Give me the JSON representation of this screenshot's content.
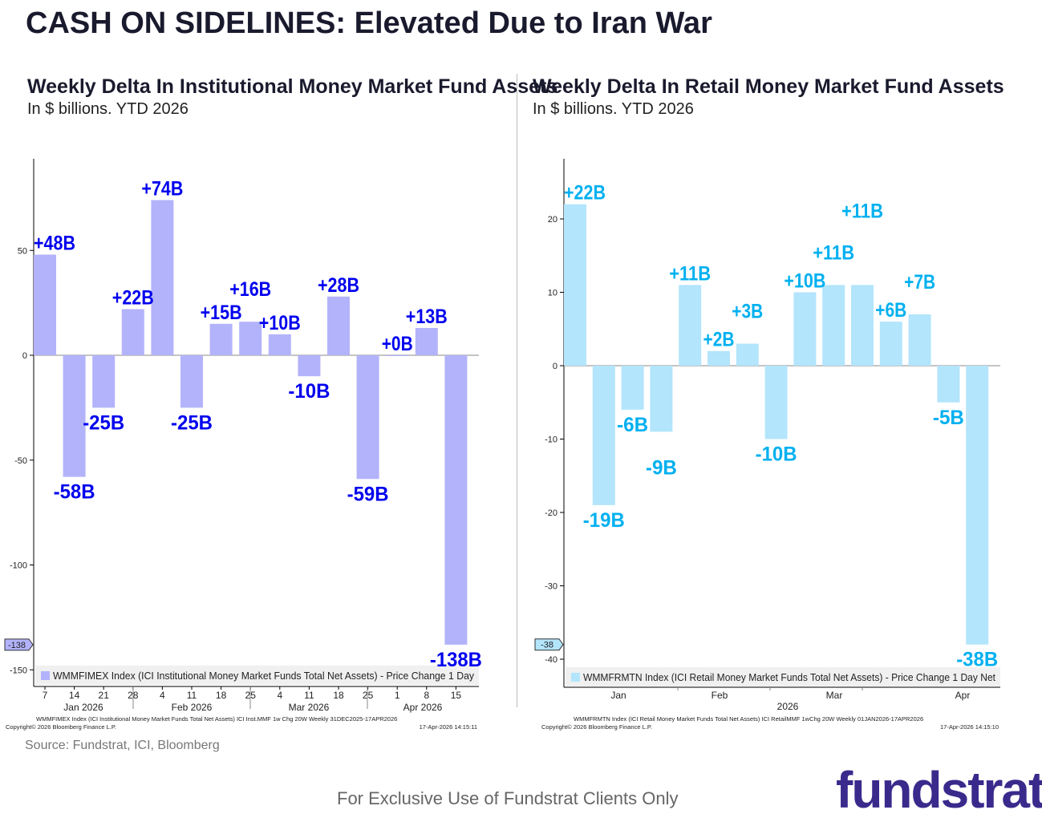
{
  "title": "CASH ON SIDELINES: Elevated Due to Iran War",
  "source": "Source: Fundstrat, ICI, Bloomberg",
  "footer": "For Exclusive Use of Fundstrat Clients Only",
  "logo": "fundstrat",
  "chart_data": [
    {
      "type": "bar",
      "title": "Weekly Delta In Institutional Money Market Fund Assets",
      "subtitle": "In $ billions. YTD 2026",
      "bar_color": "#b3b3fb",
      "label_color": "#0000ee",
      "values": [
        48,
        -58,
        -25,
        22,
        74,
        -25,
        15,
        16,
        10,
        -10,
        28,
        -59,
        0,
        13,
        -138
      ],
      "data_labels": [
        "+48B",
        "-58B",
        "-25B",
        "+22B",
        "+74B",
        "-25B",
        "+15B",
        "+16B",
        "+10B",
        "-10B",
        "+28B",
        "-59B",
        "+0B",
        "+13B",
        "-138B"
      ],
      "ylim": [
        -155,
        95
      ],
      "yticks": [
        50,
        0,
        -50,
        -100,
        -150
      ],
      "last_value_tag": "-138",
      "xtick_labels": [
        "7",
        "14",
        "21",
        "28",
        "4",
        "11",
        "18",
        "25",
        "4",
        "11",
        "18",
        "25",
        "1",
        "8",
        "15"
      ],
      "month_labels": [
        "Jan 2026",
        "Feb 2026",
        "Mar 2026",
        "Apr 2026"
      ],
      "legend": "WMMFIMEX Index (ICI Institutional Money Market Funds Total Net Assets) - Price Change 1 Day",
      "footnote": "WMMFIMEX Index (ICI Institutional Money Market Funds Total Net Assets) ICI Inst.MMF 1w Chg 20W Weekly 31DEC2025-17APR2026",
      "copyright": "Copyright© 2026 Bloomberg Finance L.P.",
      "timestamp": "17-Apr-2026 14:15:11"
    },
    {
      "type": "bar",
      "title": "Weekly Delta In Retail Money Market Fund Assets",
      "subtitle": "In $ billions. YTD 2026",
      "bar_color": "#b3e5fc",
      "label_color": "#00b0f0",
      "values": [
        22,
        -19,
        -6,
        -9,
        11,
        2,
        3,
        -10,
        10,
        11,
        11,
        6,
        7,
        -5,
        -38
      ],
      "data_labels": [
        "+22B",
        "-19B",
        "-6B",
        "-9B",
        "+11B",
        "+2B",
        "+3B",
        "-10B",
        "+10B",
        "+11B",
        "+11B",
        "+6B",
        "+7B",
        "-5B",
        "-38B"
      ],
      "ylim": [
        -42.5,
        28
      ],
      "yticks": [
        20,
        10,
        0,
        -10,
        -20,
        -30,
        -40
      ],
      "last_value_tag": "-38",
      "xtick_labels": [],
      "month_labels": [
        "Jan",
        "Feb",
        "Mar",
        "Apr"
      ],
      "year_label": "2026",
      "legend": "WMMFRMTN Index (ICI Retail Money Market Funds Total Net Assets) - Price Change 1 Day Net",
      "footnote": "WMMFRMTN Index (ICI Retail Money Market Funds Total Net Assets) ICI RetailMMF 1wChg 20W Weekly 01JAN2026-17APR2026",
      "copyright": "Copyright© 2026 Bloomberg Finance L.P.",
      "timestamp": "17-Apr-2026 14:15:10"
    }
  ]
}
